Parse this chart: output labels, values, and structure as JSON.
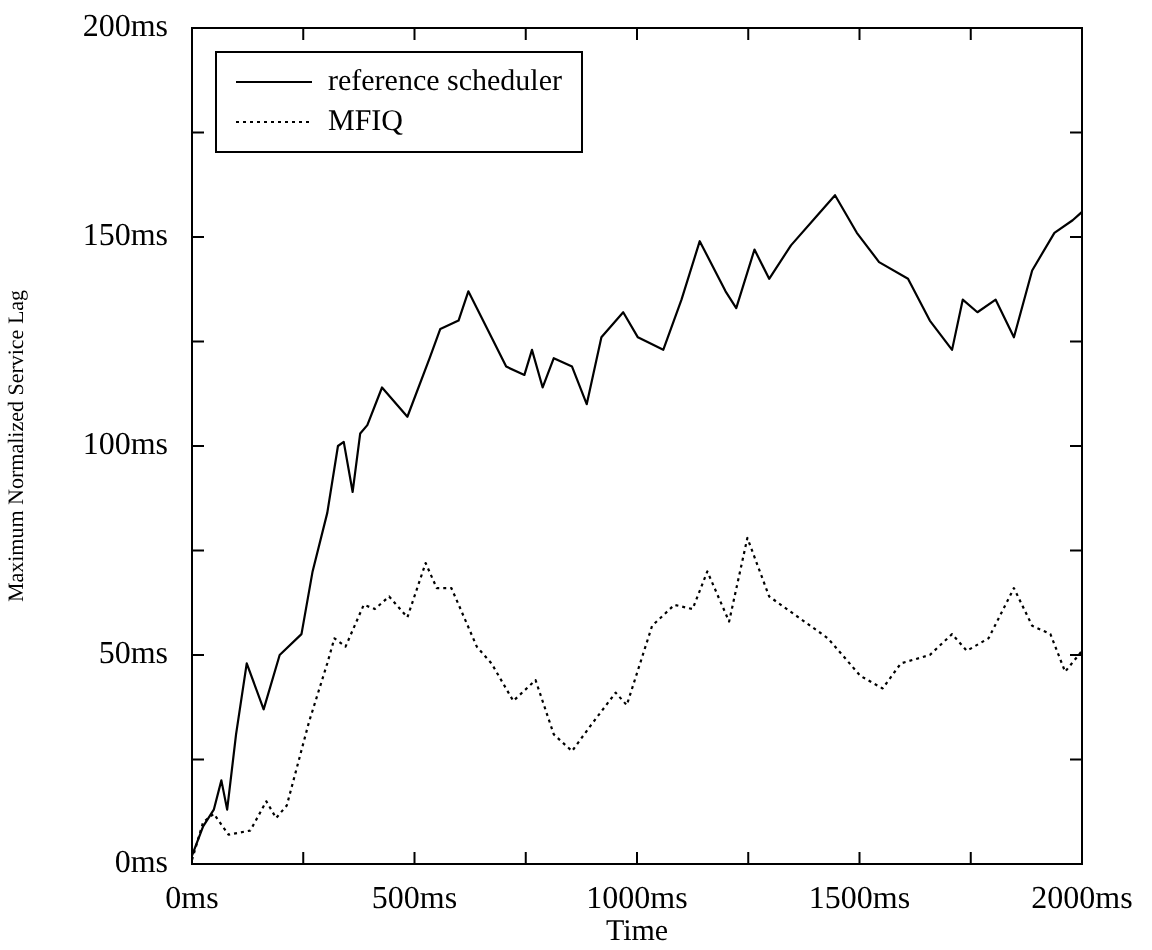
{
  "chart_data": {
    "type": "line",
    "xlabel": "Time",
    "ylabel": "Maximum Normalized Service Lag",
    "xlim": [
      0,
      2000
    ],
    "ylim": [
      0,
      200
    ],
    "xticks": [
      {
        "value": 0,
        "label": "0ms"
      },
      {
        "value": 250,
        "label": null
      },
      {
        "value": 500,
        "label": "500ms"
      },
      {
        "value": 750,
        "label": null
      },
      {
        "value": 1000,
        "label": "1000ms"
      },
      {
        "value": 1250,
        "label": null
      },
      {
        "value": 1500,
        "label": "1500ms"
      },
      {
        "value": 1750,
        "label": null
      },
      {
        "value": 2000,
        "label": "2000ms"
      }
    ],
    "yticks": [
      {
        "value": 0,
        "label": "0ms"
      },
      {
        "value": 25,
        "label": null
      },
      {
        "value": 50,
        "label": "50ms"
      },
      {
        "value": 75,
        "label": null
      },
      {
        "value": 100,
        "label": "100ms"
      },
      {
        "value": 125,
        "label": null
      },
      {
        "value": 150,
        "label": "150ms"
      },
      {
        "value": 175,
        "label": null
      },
      {
        "value": 200,
        "label": "200ms"
      }
    ],
    "legend": "top left",
    "marker": "none",
    "series": [
      {
        "name": "reference scheduler",
        "color": "#000000",
        "line_style": "solid",
        "x": [
          0,
          25,
          49,
          66,
          79,
          99,
          123,
          161,
          197,
          246,
          271,
          304,
          328,
          341,
          361,
          378,
          394,
          427,
          484,
          534,
          558,
          599,
          621,
          673,
          706,
          747,
          764,
          788,
          813,
          854,
          887,
          920,
          969,
          1002,
          1059,
          1100,
          1141,
          1199,
          1223,
          1264,
          1297,
          1346,
          1404,
          1445,
          1494,
          1544,
          1609,
          1658,
          1708,
          1732,
          1765,
          1806,
          1847,
          1888,
          1938,
          1979,
          2000
        ],
        "values": [
          2,
          9,
          13,
          20,
          13,
          31,
          48,
          37,
          50,
          55,
          70,
          84,
          100,
          101,
          89,
          103,
          105,
          114,
          107,
          121,
          128,
          130,
          137,
          126,
          119,
          117,
          123,
          114,
          121,
          119,
          110,
          126,
          132,
          126,
          123,
          135,
          149,
          137,
          133,
          147,
          140,
          148,
          155,
          160,
          151,
          144,
          140,
          130,
          123,
          135,
          132,
          135,
          126,
          142,
          151,
          154,
          156
        ]
      },
      {
        "name": "MFIQ",
        "color": "#000000",
        "line_style": "dotted",
        "x": [
          0,
          25,
          49,
          82,
          131,
          167,
          189,
          213,
          263,
          304,
          320,
          345,
          386,
          411,
          443,
          484,
          525,
          550,
          583,
          640,
          673,
          722,
          772,
          813,
          854,
          895,
          952,
          977,
          1034,
          1084,
          1125,
          1158,
          1207,
          1248,
          1297,
          1363,
          1429,
          1502,
          1552,
          1593,
          1658,
          1708,
          1741,
          1790,
          1847,
          1888,
          1929,
          1962,
          2000
        ],
        "values": [
          1,
          10,
          12,
          7,
          8,
          15,
          11,
          14,
          34,
          48,
          54,
          52,
          62,
          61,
          64,
          59,
          72,
          66,
          66,
          52,
          48,
          39,
          44,
          31,
          27,
          33,
          41,
          38,
          57,
          62,
          61,
          70,
          58,
          78,
          64,
          59,
          54,
          45,
          42,
          48,
          50,
          55,
          51,
          54,
          66,
          57,
          55,
          46,
          51
        ]
      }
    ]
  }
}
